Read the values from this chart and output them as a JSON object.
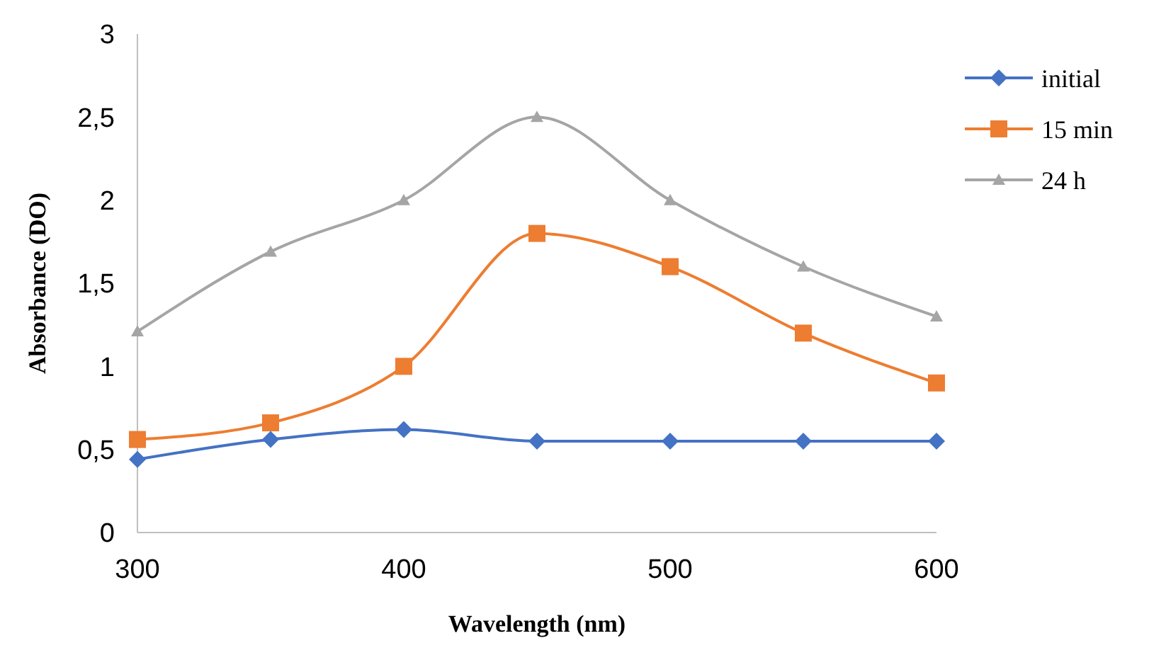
{
  "chart_data": {
    "type": "line",
    "xlabel": "Wavelength (nm)",
    "ylabel": "Absorbance (DO)",
    "x": [
      300,
      350,
      400,
      450,
      500,
      550,
      600
    ],
    "series": [
      {
        "name": "initial",
        "color": "#4472c4",
        "marker": "diamond",
        "values": [
          0.44,
          0.56,
          0.62,
          0.55,
          0.55,
          0.55,
          0.55
        ]
      },
      {
        "name": "15 min",
        "color": "#ed7d31",
        "marker": "square",
        "values": [
          0.56,
          0.66,
          1.0,
          1.8,
          1.6,
          1.2,
          0.9
        ]
      },
      {
        "name": "24 h",
        "color": "#a5a5a5",
        "marker": "triangle",
        "values": [
          1.21,
          1.69,
          2.0,
          2.5,
          2.0,
          1.6,
          1.3
        ]
      }
    ],
    "xlim": [
      300,
      600
    ],
    "xticks": [
      300,
      400,
      500,
      600
    ],
    "ylim": [
      0,
      3
    ],
    "yticks": [
      0,
      {
        "value": 0.5,
        "label": "0,5"
      },
      1,
      {
        "value": 1.5,
        "label": "1,5"
      },
      2,
      {
        "value": 2.5,
        "label": "2,5"
      },
      3
    ],
    "grid": false,
    "legend": "right",
    "line_style": "solid"
  }
}
